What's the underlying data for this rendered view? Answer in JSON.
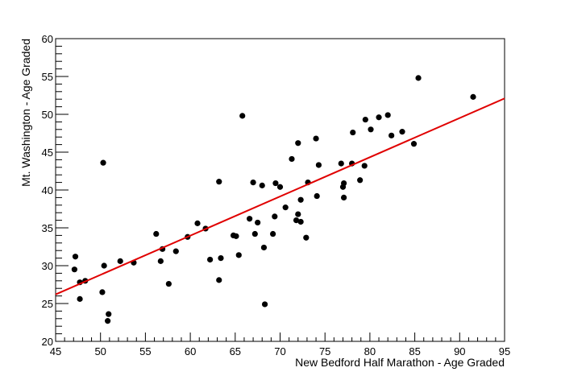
{
  "chart_data": {
    "type": "scatter",
    "xlabel": "New Bedford Half Marathon - Age Graded",
    "ylabel": "Mt. Washington - Age Graded",
    "xlim": [
      45,
      95
    ],
    "ylim": [
      20,
      60
    ],
    "x_ticks": [
      "45",
      "50",
      "55",
      "60",
      "65",
      "70",
      "75",
      "80",
      "85",
      "90",
      "95"
    ],
    "y_ticks": [
      "20",
      "25",
      "30",
      "35",
      "40",
      "45",
      "50",
      "55",
      "60"
    ],
    "marker_color": "#000000",
    "fit_line": {
      "color": "#e00000",
      "x": [
        45,
        95
      ],
      "y": [
        26.2,
        52.1
      ]
    },
    "points": [
      {
        "x": 47.2,
        "y": 31.2
      },
      {
        "x": 47.1,
        "y": 29.5
      },
      {
        "x": 47.7,
        "y": 25.6
      },
      {
        "x": 47.7,
        "y": 27.8
      },
      {
        "x": 48.3,
        "y": 28.0
      },
      {
        "x": 50.2,
        "y": 26.5
      },
      {
        "x": 50.3,
        "y": 43.6
      },
      {
        "x": 50.4,
        "y": 30.0
      },
      {
        "x": 50.9,
        "y": 23.6
      },
      {
        "x": 50.8,
        "y": 22.7
      },
      {
        "x": 52.2,
        "y": 30.6
      },
      {
        "x": 53.7,
        "y": 30.4
      },
      {
        "x": 56.2,
        "y": 34.2
      },
      {
        "x": 56.7,
        "y": 30.6
      },
      {
        "x": 56.9,
        "y": 32.2
      },
      {
        "x": 57.6,
        "y": 27.6
      },
      {
        "x": 58.4,
        "y": 31.9
      },
      {
        "x": 59.7,
        "y": 33.8
      },
      {
        "x": 60.8,
        "y": 35.6
      },
      {
        "x": 61.7,
        "y": 34.9
      },
      {
        "x": 62.2,
        "y": 30.8
      },
      {
        "x": 63.2,
        "y": 41.1
      },
      {
        "x": 63.2,
        "y": 28.1
      },
      {
        "x": 63.4,
        "y": 31.0
      },
      {
        "x": 64.8,
        "y": 34.0
      },
      {
        "x": 65.1,
        "y": 33.9
      },
      {
        "x": 65.4,
        "y": 31.4
      },
      {
        "x": 65.8,
        "y": 49.8
      },
      {
        "x": 66.6,
        "y": 36.2
      },
      {
        "x": 67.0,
        "y": 41.0
      },
      {
        "x": 67.2,
        "y": 34.2
      },
      {
        "x": 67.5,
        "y": 35.7
      },
      {
        "x": 68.0,
        "y": 40.6
      },
      {
        "x": 68.2,
        "y": 32.4
      },
      {
        "x": 68.3,
        "y": 24.9
      },
      {
        "x": 69.2,
        "y": 34.2
      },
      {
        "x": 69.4,
        "y": 36.5
      },
      {
        "x": 69.5,
        "y": 40.9
      },
      {
        "x": 70.0,
        "y": 40.4
      },
      {
        "x": 70.6,
        "y": 37.7
      },
      {
        "x": 71.3,
        "y": 44.1
      },
      {
        "x": 71.8,
        "y": 36.0
      },
      {
        "x": 72.0,
        "y": 46.2
      },
      {
        "x": 72.0,
        "y": 36.8
      },
      {
        "x": 72.3,
        "y": 38.7
      },
      {
        "x": 72.3,
        "y": 35.8
      },
      {
        "x": 72.9,
        "y": 33.7
      },
      {
        "x": 73.1,
        "y": 41.0
      },
      {
        "x": 74.0,
        "y": 46.8
      },
      {
        "x": 74.1,
        "y": 39.2
      },
      {
        "x": 74.3,
        "y": 43.3
      },
      {
        "x": 76.8,
        "y": 43.5
      },
      {
        "x": 77.0,
        "y": 40.4
      },
      {
        "x": 77.1,
        "y": 40.9
      },
      {
        "x": 77.1,
        "y": 39.0
      },
      {
        "x": 78.0,
        "y": 43.5
      },
      {
        "x": 78.1,
        "y": 47.6
      },
      {
        "x": 78.9,
        "y": 41.3
      },
      {
        "x": 79.4,
        "y": 43.2
      },
      {
        "x": 79.5,
        "y": 49.3
      },
      {
        "x": 80.1,
        "y": 48.0
      },
      {
        "x": 81.0,
        "y": 49.6
      },
      {
        "x": 82.0,
        "y": 49.9
      },
      {
        "x": 82.4,
        "y": 47.2
      },
      {
        "x": 83.6,
        "y": 47.7
      },
      {
        "x": 84.9,
        "y": 46.1
      },
      {
        "x": 85.4,
        "y": 54.8
      },
      {
        "x": 91.5,
        "y": 52.3
      }
    ]
  }
}
